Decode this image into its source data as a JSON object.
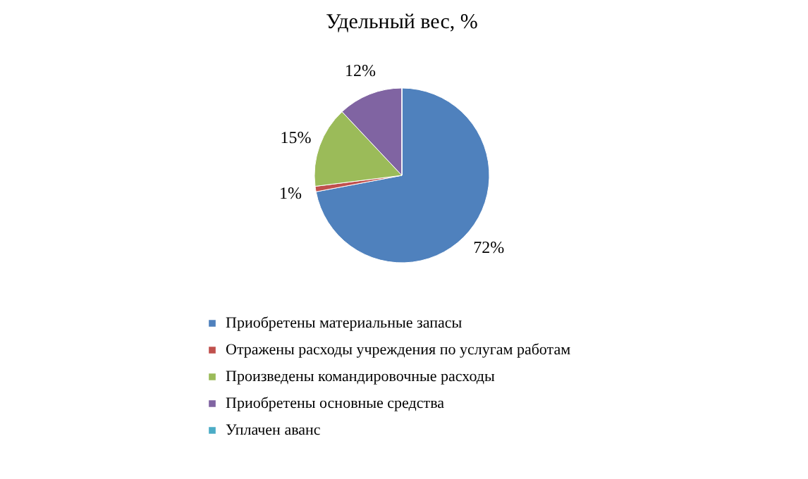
{
  "chart_data": {
    "type": "pie",
    "title": "Удельный вес, %",
    "categories": [
      "Приобретены материальные запасы",
      "Отражены расходы учреждения по услугам работам",
      "Произведены командировочные расходы",
      "Приобретены основные средства",
      "Уплачен аванс"
    ],
    "values": [
      72,
      1,
      15,
      12,
      0
    ],
    "colors": [
      "#4f81bd",
      "#c0504d",
      "#9bbb59",
      "#8064a2",
      "#4bacc6"
    ],
    "value_labels": [
      "72%",
      "1%",
      "15%",
      "12%",
      null
    ],
    "legend": "bottom"
  }
}
